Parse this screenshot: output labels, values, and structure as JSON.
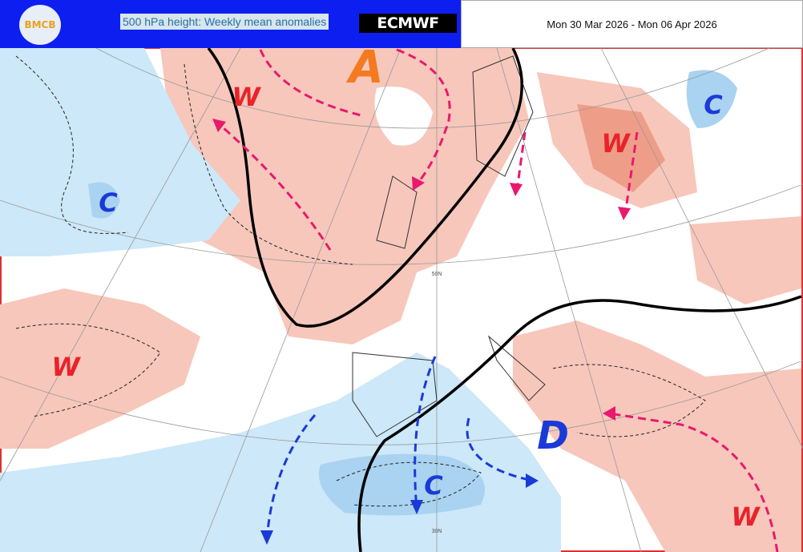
{
  "header": {
    "logo": "BMCB",
    "title": "500 hPa height: Weekly mean anomalies",
    "brand": "ECMWF",
    "date": "Mon 30 Mar 2026 - Mon 06 Apr 2026"
  },
  "map": {
    "labels": [
      "A",
      "W",
      "C",
      "C",
      "W",
      "W",
      "D",
      "C",
      "W"
    ],
    "gridlabels": [
      "50N",
      "30N"
    ]
  }
}
